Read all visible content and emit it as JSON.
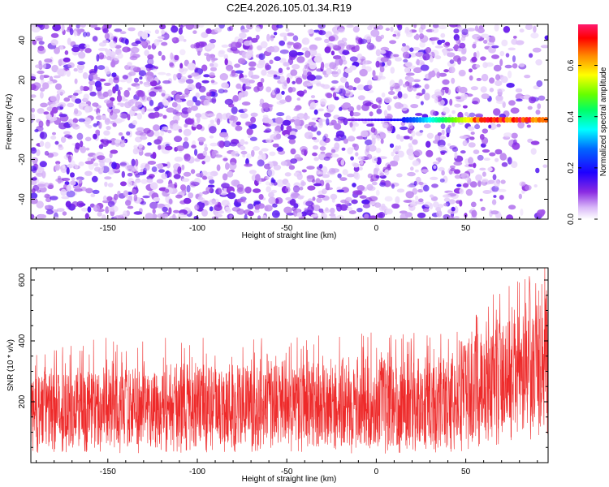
{
  "title": "C2E4.2026.105.01.34.R19",
  "colors": {
    "snr_line": "#ee2a2a",
    "axis": "#000000",
    "background": "#ffffff",
    "colormap": [
      "#ffffff",
      "#e6d0fb",
      "#c48af4",
      "#8a2be2",
      "#5a00ee",
      "#0000ff",
      "#00ffff",
      "#00ff00",
      "#ffff00",
      "#ff0000",
      "#ff1a6e"
    ]
  },
  "chart_data": [
    {
      "type": "heatmap",
      "title": "C2E4.2026.105.01.34.R19",
      "xlabel": "Height of straight line (km)",
      "ylabel": "Frequency (Hz)",
      "xlim": [
        -193,
        96
      ],
      "ylim": [
        -50,
        48
      ],
      "xticks": [
        -150,
        -100,
        -50,
        0,
        50
      ],
      "xtick_labels": [
        "-150",
        "-100",
        "-50",
        "0",
        "50"
      ],
      "yticks": [
        -40,
        -20,
        0,
        20,
        40
      ],
      "ytick_labels": [
        "-40",
        "-20",
        "0",
        "20",
        "40"
      ],
      "signal_band": {
        "frequency_hz": 0,
        "start_height_km": -15,
        "strong_from_km": 15,
        "peak_range_km": [
          55,
          90
        ],
        "peak_amplitude": 0.75
      },
      "colorbar": {
        "label": "Normalized spectral amplitude",
        "range": [
          0,
          0.76
        ],
        "ticks": [
          0,
          0.2,
          0.4,
          0.6
        ],
        "tick_labels": [
          "0.0",
          "0.2",
          "0.4",
          "0.6"
        ]
      }
    },
    {
      "type": "line",
      "xlabel": "Height of straight line (km)",
      "ylabel": "SNR (10 * v/v)",
      "xlim": [
        -193,
        96
      ],
      "ylim": [
        0,
        640
      ],
      "xticks": [
        -150,
        -100,
        -50,
        0,
        50
      ],
      "xtick_labels": [
        "-150",
        "-100",
        "-50",
        "0",
        "50"
      ],
      "yticks": [
        200,
        400,
        600
      ],
      "ytick_labels": [
        "200",
        "400",
        "600"
      ],
      "series": [
        {
          "name": "SNR",
          "x": [
            -193,
            -150,
            -100,
            -50,
            0,
            40,
            50,
            60,
            70,
            80,
            90,
            96
          ],
          "low": [
            30,
            30,
            30,
            30,
            30,
            30,
            40,
            50,
            60,
            70,
            80,
            90
          ],
          "high": [
            320,
            330,
            340,
            340,
            350,
            360,
            420,
            470,
            500,
            520,
            550,
            580
          ]
        }
      ]
    }
  ]
}
